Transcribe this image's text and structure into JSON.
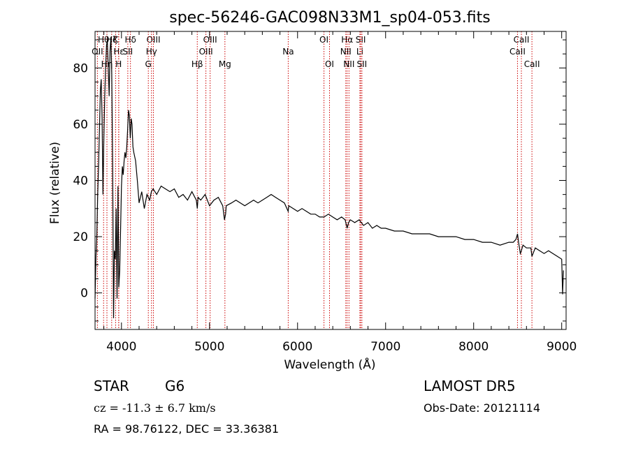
{
  "chart_data": {
    "type": "line",
    "title": "spec-56246-GAC098N33M1_sp04-053.fits",
    "xlabel": "Wavelength (Å)",
    "ylabel": "Flux (relative)",
    "xlim": [
      3700,
      9050
    ],
    "ylim": [
      -13,
      93
    ],
    "xticks": [
      4000,
      5000,
      6000,
      7000,
      8000,
      9000
    ],
    "yticks": [
      0,
      20,
      40,
      60,
      80
    ],
    "grid": false,
    "series": [
      {
        "x": [
          3700,
          3710,
          3720,
          3730,
          3740,
          3750,
          3760,
          3770,
          3780,
          3790,
          3800,
          3810,
          3820,
          3830,
          3840,
          3850,
          3860,
          3870,
          3880,
          3890,
          3900,
          3910,
          3920,
          3930,
          3940,
          3950,
          3960,
          3970,
          3980,
          3990,
          4000,
          4010,
          4020,
          4030,
          4040,
          4050,
          4060,
          4070,
          4080,
          4090,
          4100,
          4110,
          4120,
          4130,
          4140,
          4160,
          4180,
          4200,
          4230,
          4260,
          4290,
          4320,
          4340,
          4360,
          4400,
          4450,
          4500,
          4550,
          4600,
          4650,
          4700,
          4750,
          4800,
          4850,
          4861,
          4870,
          4900,
          4950,
          5000,
          5050,
          5100,
          5150,
          5170,
          5183,
          5190,
          5250,
          5300,
          5350,
          5400,
          5450,
          5500,
          5550,
          5600,
          5650,
          5700,
          5750,
          5800,
          5850,
          5893,
          5900,
          5950,
          6000,
          6050,
          6100,
          6150,
          6200,
          6250,
          6300,
          6350,
          6400,
          6450,
          6500,
          6540,
          6563,
          6580,
          6600,
          6650,
          6700,
          6750,
          6800,
          6850,
          6900,
          6950,
          7000,
          7100,
          7200,
          7300,
          7400,
          7500,
          7600,
          7700,
          7800,
          7900,
          8000,
          8100,
          8200,
          8300,
          8400,
          8450,
          8480,
          8498,
          8510,
          8530,
          8542,
          8560,
          8600,
          8650,
          8662,
          8700,
          8750,
          8800,
          8850,
          8900,
          8950,
          9000,
          9010,
          9020
        ],
        "y": [
          -2,
          13,
          20,
          35,
          45,
          58,
          72,
          76,
          62,
          35,
          55,
          70,
          80,
          88,
          90,
          80,
          70,
          86,
          91,
          78,
          45,
          -9,
          15,
          12,
          30,
          -2,
          38,
          2,
          8,
          22,
          38,
          45,
          42,
          47,
          50,
          48,
          52,
          58,
          65,
          63,
          55,
          62,
          60,
          52,
          50,
          47,
          40,
          32,
          36,
          30,
          35,
          33,
          36,
          37,
          35,
          38,
          37,
          36,
          37,
          34,
          35,
          33,
          36,
          33,
          30,
          34,
          33,
          35,
          31,
          33,
          34,
          31,
          26,
          28,
          31,
          32,
          33,
          32,
          31,
          32,
          33,
          32,
          33,
          34,
          35,
          34,
          33,
          32,
          29,
          31,
          30,
          29,
          30,
          29,
          28,
          28,
          27,
          27,
          28,
          27,
          26,
          27,
          26,
          23,
          25,
          26,
          25,
          26,
          24,
          25,
          23,
          24,
          23,
          23,
          22,
          22,
          21,
          21,
          21,
          20,
          20,
          20,
          19,
          19,
          18,
          18,
          17,
          18,
          18,
          19,
          21,
          18,
          14,
          15,
          17,
          16,
          16,
          13,
          16,
          15,
          14,
          15,
          14,
          13,
          12,
          -0.5,
          8
        ]
      }
    ],
    "line_markers": [
      {
        "label": "Hθ",
        "x": 3797,
        "row": 1
      },
      {
        "label": "OII",
        "x": 3727,
        "row": 2
      },
      {
        "label": "Hη",
        "x": 3835,
        "row": 3
      },
      {
        "label": "Hζ",
        "x": 3889,
        "row": 1
      },
      {
        "label": "K",
        "x": 3934,
        "row": 1
      },
      {
        "label": "Hε",
        "x": 3970,
        "row": 2
      },
      {
        "label": "H",
        "x": 3968,
        "row": 3
      },
      {
        "label": "Hδ",
        "x": 4102,
        "row": 1
      },
      {
        "label": "SII",
        "x": 4072,
        "row": 2
      },
      {
        "label": "OIII",
        "x": 4363,
        "row": 1
      },
      {
        "label": "Hγ",
        "x": 4341,
        "row": 2
      },
      {
        "label": "G",
        "x": 4305,
        "row": 3
      },
      {
        "label": "Hβ",
        "x": 4861,
        "row": 3
      },
      {
        "label": "OIII",
        "x": 5007,
        "row": 1
      },
      {
        "label": "OIII",
        "x": 4959,
        "row": 2
      },
      {
        "label": "Mg",
        "x": 5175,
        "row": 3
      },
      {
        "label": "Na",
        "x": 5894,
        "row": 2
      },
      {
        "label": "OI",
        "x": 6300,
        "row": 1
      },
      {
        "label": "OI",
        "x": 6363,
        "row": 3
      },
      {
        "label": "Hα",
        "x": 6563,
        "row": 1
      },
      {
        "label": "NII",
        "x": 6548,
        "row": 2
      },
      {
        "label": "NII",
        "x": 6584,
        "row": 3
      },
      {
        "label": "SII",
        "x": 6717,
        "row": 1
      },
      {
        "label": "Li",
        "x": 6708,
        "row": 2
      },
      {
        "label": "SII",
        "x": 6731,
        "row": 3
      },
      {
        "label": "CaII",
        "x": 8542,
        "row": 1
      },
      {
        "label": "CaII",
        "x": 8498,
        "row": 2
      },
      {
        "label": "CaII",
        "x": 8662,
        "row": 3
      }
    ]
  },
  "info": {
    "class": "STAR",
    "subclass": "G6",
    "survey": "LAMOST DR5",
    "cz": "cz = -11.3 ± 6.7 km/s",
    "obs_date": "Obs-Date: 20121114",
    "coords": "RA =  98.76122, DEC =  33.36381"
  },
  "colors": {
    "line_marker": "#cc0000",
    "spectrum": "#000000"
  }
}
